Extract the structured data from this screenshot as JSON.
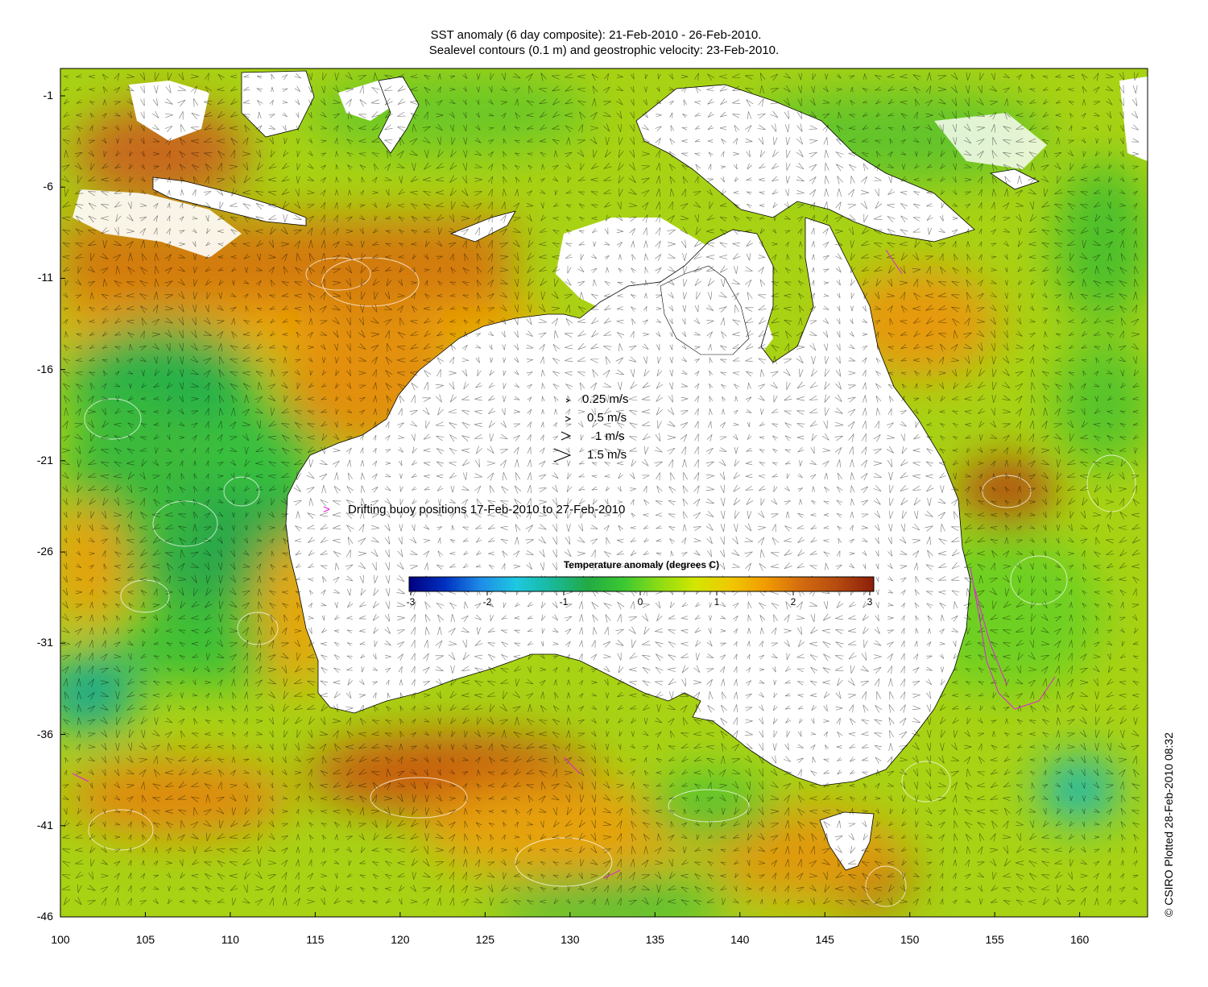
{
  "title_line1": "SST anomaly (6 day composite): 21-Feb-2010 - 26-Feb-2010.",
  "title_line2": "Sealevel contours (0.1 m) and geostrophic velocity: 23-Feb-2010.",
  "axes": {
    "lon_ticks": [
      "100",
      "105",
      "110",
      "115",
      "120",
      "125",
      "130",
      "135",
      "140",
      "145",
      "150",
      "155",
      "160"
    ],
    "lat_ticks": [
      "-1",
      "-6",
      "-11",
      "-16",
      "-21",
      "-26",
      "-31",
      "-36",
      "-41",
      "-46"
    ],
    "lon_range": [
      100,
      164
    ],
    "lat_range": [
      -46,
      0.5
    ]
  },
  "velocity_legend": [
    {
      "label": "0.25 m/s",
      "speed": 0.25
    },
    {
      "label": "0.5 m/s",
      "speed": 0.5
    },
    {
      "label": "1 m/s",
      "speed": 1
    },
    {
      "label": "1.5 m/s",
      "speed": 1.5
    }
  ],
  "buoy_legend": {
    "symbol": ">",
    "label": "Drifting buoy positions 17-Feb-2010 to 27-Feb-2010",
    "color": "#e01ee0"
  },
  "colorbar": {
    "title": "Temperature anomaly (degrees C)",
    "ticks": [
      "-3",
      "-2",
      "-1",
      "0",
      "1",
      "2",
      "3"
    ],
    "range": [
      -3,
      3
    ],
    "colors": [
      "#000080",
      "#0030c0",
      "#1e8ce8",
      "#1ec8e0",
      "#19b89a",
      "#22aa44",
      "#3cc832",
      "#8cdc14",
      "#d2e600",
      "#f0c800",
      "#f09a00",
      "#d26a10",
      "#b44a10",
      "#8c1e0a"
    ]
  },
  "copyright": "© CSIRO Plotted 28-Feb-2010 08:32"
}
